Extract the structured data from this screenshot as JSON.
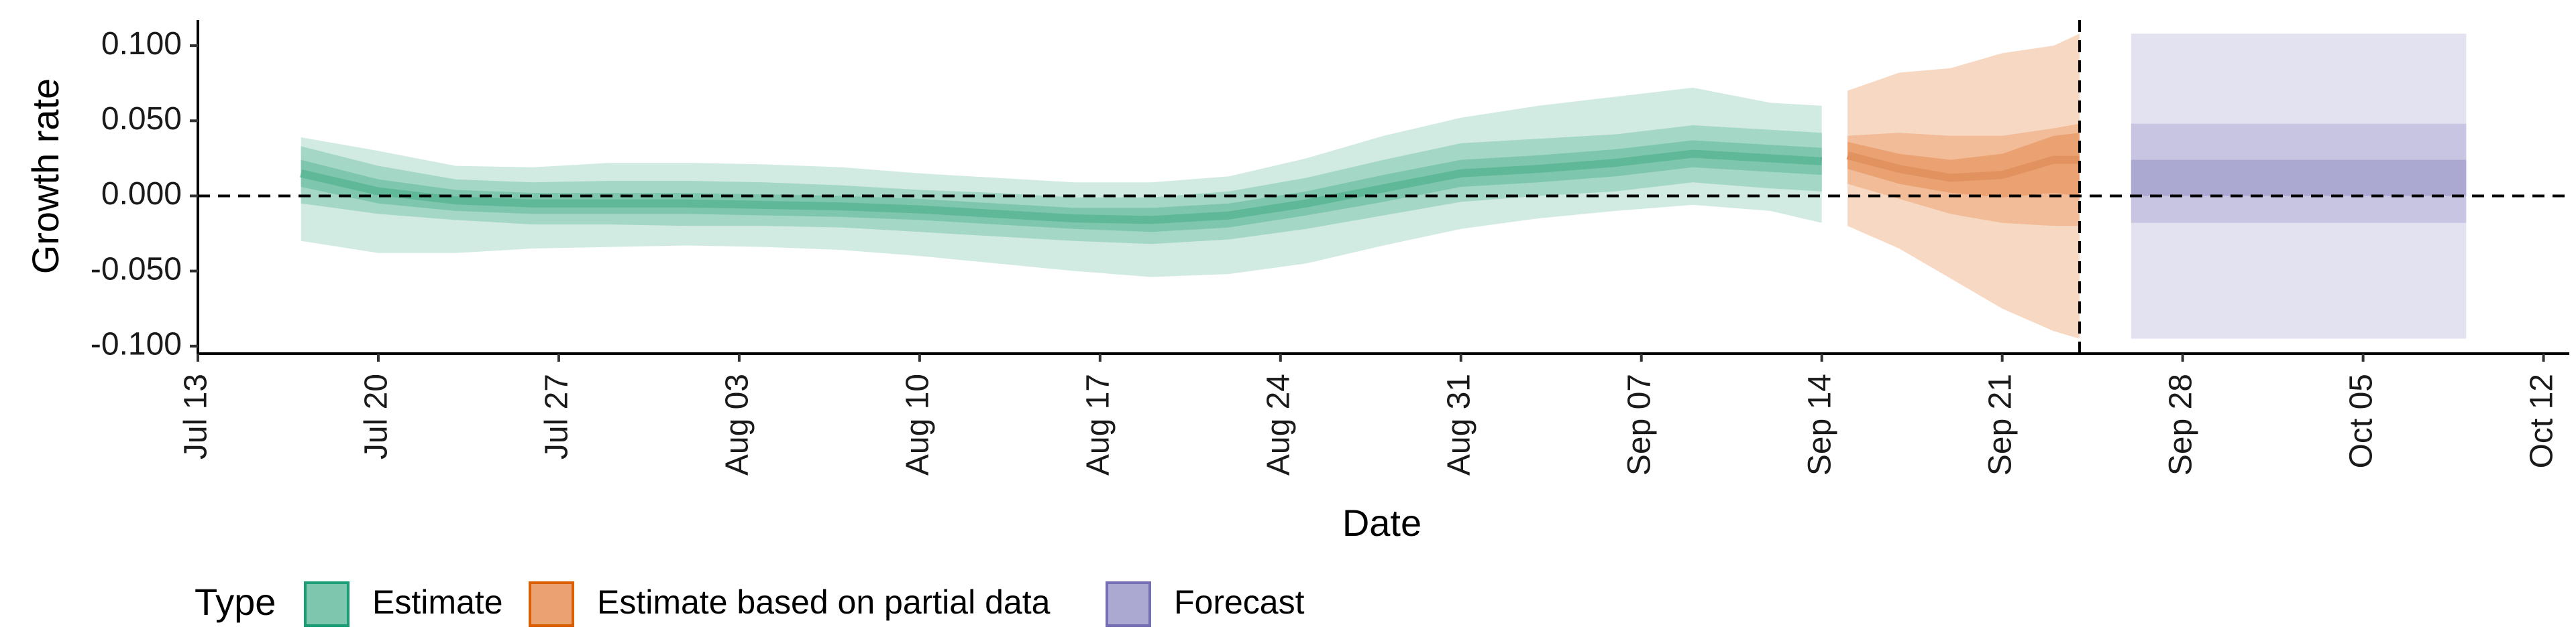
{
  "chart_data": {
    "type": "area",
    "xlabel": "Date",
    "ylabel": "Growth rate",
    "x_tick_labels": [
      "Jul 13",
      "Jul 20",
      "Jul 27",
      "Aug 03",
      "Aug 10",
      "Aug 17",
      "Aug 24",
      "Aug 31",
      "Sep 07",
      "Sep 14",
      "Sep 21",
      "Sep 28",
      "Oct 05",
      "Oct 12"
    ],
    "x_tick_dates": [
      "2020-07-13",
      "2020-07-20",
      "2020-07-27",
      "2020-08-03",
      "2020-08-10",
      "2020-08-17",
      "2020-08-24",
      "2020-08-31",
      "2020-09-07",
      "2020-09-14",
      "2020-09-21",
      "2020-09-28",
      "2020-10-05",
      "2020-10-12"
    ],
    "y_tick_labels": [
      "-0.100",
      "-0.050",
      "0.000",
      "0.050",
      "0.100"
    ],
    "y_ticks": [
      -0.1,
      -0.05,
      0.0,
      0.05,
      0.1
    ],
    "xlim": [
      "2020-07-13",
      "2020-10-13"
    ],
    "ylim": [
      -0.105,
      0.117
    ],
    "hline_y": 0.0,
    "vline_x": "2020-09-24",
    "grid": false,
    "legend": {
      "title": "Type",
      "position": "bottom-left",
      "entries": [
        {
          "label": "Estimate",
          "fill": "#7fc6ae",
          "stroke": "#1b9e77"
        },
        {
          "label": "Estimate based on partial data",
          "fill": "#eaa273",
          "stroke": "#d95f02"
        },
        {
          "label": "Forecast",
          "fill": "#aba9d1",
          "stroke": "#7570b3"
        }
      ]
    },
    "series": [
      {
        "type_name": "Estimate",
        "color": "#1b9e77",
        "dates": [
          "2020-07-17",
          "2020-07-20",
          "2020-07-23",
          "2020-07-26",
          "2020-07-29",
          "2020-08-01",
          "2020-08-04",
          "2020-08-07",
          "2020-08-10",
          "2020-08-13",
          "2020-08-16",
          "2020-08-19",
          "2020-08-22",
          "2020-08-25",
          "2020-08-28",
          "2020-08-31",
          "2020-09-03",
          "2020-09-06",
          "2020-09-09",
          "2020-09-12",
          "2020-09-14"
        ],
        "median": [
          0.015,
          0.003,
          -0.003,
          -0.005,
          -0.005,
          -0.005,
          -0.006,
          -0.007,
          -0.009,
          -0.012,
          -0.015,
          -0.016,
          -0.013,
          -0.005,
          0.005,
          0.015,
          0.018,
          0.022,
          0.028,
          0.025,
          0.023
        ],
        "inner_low": [
          0.006,
          -0.005,
          -0.01,
          -0.012,
          -0.012,
          -0.012,
          -0.013,
          -0.014,
          -0.016,
          -0.019,
          -0.022,
          -0.024,
          -0.021,
          -0.013,
          -0.004,
          0.006,
          0.009,
          0.013,
          0.019,
          0.016,
          0.014
        ],
        "inner_high": [
          0.024,
          0.011,
          0.004,
          0.002,
          0.002,
          0.002,
          0.001,
          0.0,
          -0.002,
          -0.005,
          -0.008,
          -0.008,
          -0.005,
          0.003,
          0.014,
          0.024,
          0.027,
          0.031,
          0.037,
          0.034,
          0.032
        ],
        "mid_low": [
          -0.005,
          -0.012,
          -0.016,
          -0.019,
          -0.019,
          -0.02,
          -0.02,
          -0.021,
          -0.024,
          -0.027,
          -0.03,
          -0.032,
          -0.029,
          -0.022,
          -0.013,
          -0.004,
          0.0,
          0.003,
          0.009,
          0.005,
          0.003
        ],
        "mid_high": [
          0.033,
          0.02,
          0.011,
          0.009,
          0.01,
          0.01,
          0.009,
          0.007,
          0.004,
          0.002,
          -0.001,
          -0.001,
          0.003,
          0.012,
          0.024,
          0.035,
          0.038,
          0.041,
          0.047,
          0.044,
          0.042
        ],
        "outer_low": [
          -0.03,
          -0.038,
          -0.038,
          -0.035,
          -0.034,
          -0.033,
          -0.034,
          -0.036,
          -0.04,
          -0.045,
          -0.05,
          -0.054,
          -0.052,
          -0.045,
          -0.033,
          -0.022,
          -0.015,
          -0.01,
          -0.006,
          -0.01,
          -0.018
        ],
        "outer_high": [
          0.039,
          0.03,
          0.02,
          0.019,
          0.022,
          0.022,
          0.021,
          0.019,
          0.015,
          0.012,
          0.009,
          0.009,
          0.013,
          0.025,
          0.04,
          0.052,
          0.06,
          0.066,
          0.072,
          0.062,
          0.06
        ]
      },
      {
        "type_name": "Estimate based on partial data",
        "color": "#d95f02",
        "dates": [
          "2020-09-15",
          "2020-09-17",
          "2020-09-19",
          "2020-09-21",
          "2020-09-23",
          "2020-09-24"
        ],
        "median": [
          0.027,
          0.018,
          0.012,
          0.014,
          0.024,
          0.024
        ],
        "inner_low": [
          0.018,
          0.008,
          0.002,
          -0.001,
          0.002,
          0.0
        ],
        "inner_high": [
          0.036,
          0.028,
          0.024,
          0.028,
          0.04,
          0.042
        ],
        "mid_low": [
          0.008,
          -0.002,
          -0.012,
          -0.018,
          -0.02,
          -0.02
        ],
        "mid_high": [
          0.04,
          0.042,
          0.04,
          0.04,
          0.045,
          0.048
        ],
        "outer_low": [
          -0.02,
          -0.035,
          -0.055,
          -0.075,
          -0.09,
          -0.095
        ],
        "outer_high": [
          0.07,
          0.082,
          0.085,
          0.095,
          0.1,
          0.108
        ]
      },
      {
        "type_name": "Forecast",
        "color": "#7570b3",
        "dates": [
          "2020-09-26",
          "2020-10-09"
        ],
        "median": [
          0.024,
          0.024
        ],
        "inner_low": [
          0.0,
          0.0
        ],
        "inner_high": [
          0.024,
          0.024
        ],
        "mid_low": [
          -0.018,
          -0.018
        ],
        "mid_high": [
          0.048,
          0.048
        ],
        "outer_low": [
          -0.095,
          -0.095
        ],
        "outer_high": [
          0.108,
          0.108
        ]
      }
    ]
  }
}
